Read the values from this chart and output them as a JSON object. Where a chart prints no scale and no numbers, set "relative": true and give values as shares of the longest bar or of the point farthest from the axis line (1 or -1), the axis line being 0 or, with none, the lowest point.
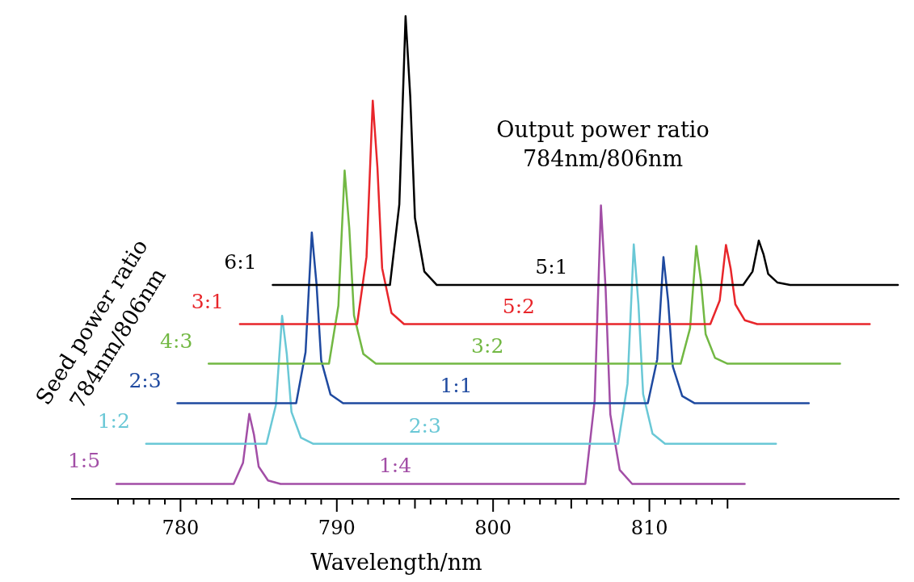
{
  "chart_data": {
    "type": "line",
    "relative": true,
    "xlabel": "Wavelength/nm",
    "ylabel": "Seed power ratio\n784nm/806nm",
    "line_style": "solid",
    "xlim": [
      773,
      826
    ],
    "xticks": [
      {
        "value": 776,
        "label": null
      },
      {
        "value": 777,
        "label": null
      },
      {
        "value": 778,
        "label": null
      },
      {
        "value": 779,
        "label": null
      },
      780,
      {
        "value": 781,
        "label": null
      },
      {
        "value": 782,
        "label": null
      },
      {
        "value": 783,
        "label": null
      },
      {
        "value": 784,
        "label": null
      },
      {
        "value": 785,
        "label": null
      },
      {
        "value": 786,
        "label": null
      },
      {
        "value": 787,
        "label": null
      },
      {
        "value": 788,
        "label": null
      },
      {
        "value": 789,
        "label": null
      },
      790,
      {
        "value": 791,
        "label": null
      },
      {
        "value": 792,
        "label": null
      },
      {
        "value": 793,
        "label": null
      },
      {
        "value": 794,
        "label": null
      },
      {
        "value": 795,
        "label": null
      },
      {
        "value": 796,
        "label": null
      },
      {
        "value": 797,
        "label": null
      },
      {
        "value": 798,
        "label": null
      },
      {
        "value": 799,
        "label": null
      },
      800,
      {
        "value": 801,
        "label": null
      },
      {
        "value": 802,
        "label": null
      },
      {
        "value": 803,
        "label": null
      },
      {
        "value": 804,
        "label": null
      },
      {
        "value": 805,
        "label": null
      },
      {
        "value": 806,
        "label": null
      },
      {
        "value": 807,
        "label": null
      },
      {
        "value": 808,
        "label": null
      },
      {
        "value": 809,
        "label": null
      },
      810,
      {
        "value": 811,
        "label": null
      },
      {
        "value": 812,
        "label": null
      },
      {
        "value": 813,
        "label": null
      },
      {
        "value": 814,
        "label": null
      },
      {
        "value": 815,
        "label": null
      }
    ],
    "series": [
      {
        "name": "1:5",
        "color": "#a24ea6",
        "x": [
          775.9,
          783.4,
          784.0,
          784.4,
          784.7,
          785.0,
          785.6,
          786.4,
          805.9,
          806.5,
          806.9,
          807.2,
          807.5,
          808.1,
          808.9,
          816.1
        ],
        "values": [
          0.031,
          0.031,
          0.075,
          0.176,
          0.133,
          0.067,
          0.038,
          0.031,
          0.031,
          0.204,
          0.608,
          0.435,
          0.175,
          0.06,
          0.031,
          0.031
        ]
      },
      {
        "name": "1:2",
        "color": "#6ac8d6",
        "x": [
          777.8,
          785.5,
          786.1,
          786.5,
          786.8,
          787.1,
          787.7,
          788.5,
          808.0,
          808.6,
          809.0,
          809.3,
          809.6,
          810.2,
          811.0,
          818.1
        ],
        "values": [
          0.114,
          0.114,
          0.194,
          0.379,
          0.3,
          0.18,
          0.127,
          0.114,
          0.114,
          0.238,
          0.527,
          0.403,
          0.217,
          0.135,
          0.114,
          0.114
        ]
      },
      {
        "name": "2:3",
        "color": "#1f4aa0",
        "x": [
          779.8,
          787.4,
          788.0,
          788.4,
          788.7,
          789.0,
          789.6,
          790.4,
          809.9,
          810.5,
          810.9,
          811.2,
          811.5,
          812.1,
          812.9,
          820.2
        ],
        "values": [
          0.198,
          0.198,
          0.304,
          0.552,
          0.446,
          0.287,
          0.216,
          0.198,
          0.198,
          0.289,
          0.501,
          0.41,
          0.274,
          0.213,
          0.198,
          0.198
        ]
      },
      {
        "name": "4:3",
        "color": "#72b843",
        "x": [
          781.8,
          789.5,
          790.1,
          790.5,
          790.8,
          791.1,
          791.7,
          792.5,
          812.0,
          812.6,
          813.0,
          813.3,
          813.6,
          814.2,
          815.0,
          822.2
        ],
        "values": [
          0.28,
          0.28,
          0.4,
          0.68,
          0.56,
          0.38,
          0.3,
          0.28,
          0.28,
          0.353,
          0.524,
          0.451,
          0.341,
          0.292,
          0.28,
          0.28
        ]
      },
      {
        "name": "3:1",
        "color": "#e8262b",
        "x": [
          783.8,
          791.3,
          791.9,
          792.3,
          792.6,
          792.9,
          793.5,
          794.3,
          813.9,
          814.5,
          814.9,
          815.2,
          815.5,
          816.1,
          816.9,
          824.1
        ],
        "values": [
          0.362,
          0.362,
          0.501,
          0.825,
          0.686,
          0.478,
          0.385,
          0.362,
          0.362,
          0.411,
          0.526,
          0.477,
          0.403,
          0.37,
          0.362,
          0.362
        ]
      },
      {
        "name": "6:1",
        "color": "#000000",
        "x": [
          785.9,
          793.4,
          794.0,
          794.4,
          794.7,
          795.0,
          795.6,
          796.4,
          816.0,
          816.6,
          817.0,
          817.3,
          817.6,
          818.2,
          819.0,
          825.9
        ],
        "values": [
          0.443,
          0.443,
          0.61,
          1.0,
          0.833,
          0.582,
          0.471,
          0.443,
          0.443,
          0.471,
          0.535,
          0.507,
          0.466,
          0.448,
          0.443,
          0.443
        ]
      }
    ],
    "annotations": [
      "1:4",
      "2:3",
      "1:1",
      "3:2",
      "5:2",
      "5:1",
      "Output power ratio\n784nm/806nm"
    ]
  }
}
